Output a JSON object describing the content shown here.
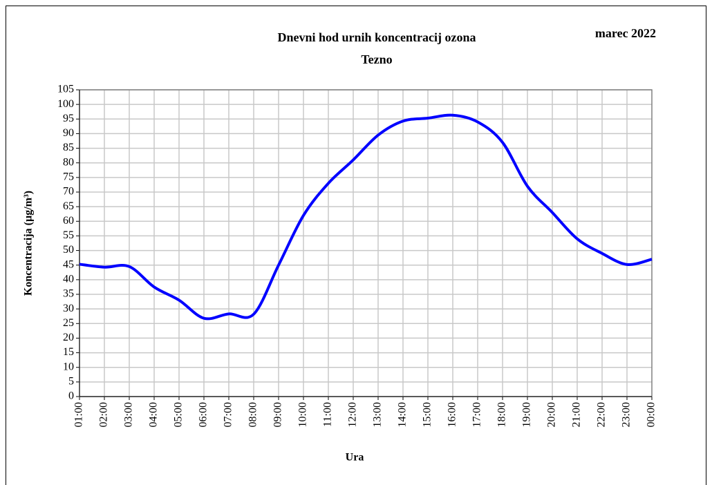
{
  "chart_data": {
    "type": "line",
    "title": "Dnevni hod urnih koncentracij ozona",
    "subtitle": "Tezno",
    "period": "marec 2022",
    "x_label": "Ura",
    "y_label": "Koncentracija (µg/m³)",
    "categories": [
      "01:00",
      "02:00",
      "03:00",
      "04:00",
      "05:00",
      "06:00",
      "07:00",
      "08:00",
      "09:00",
      "10:00",
      "11:00",
      "12:00",
      "13:00",
      "14:00",
      "15:00",
      "16:00",
      "17:00",
      "18:00",
      "19:00",
      "20:00",
      "21:00",
      "22:00",
      "23:00",
      "00:00"
    ],
    "series": [
      {
        "color": "#0000ff",
        "values": [
          45.3,
          44.3,
          44.5,
          37.5,
          33,
          26.8,
          28.3,
          28.2,
          45,
          62,
          73,
          81,
          89.5,
          94.3,
          95.3,
          96.3,
          94,
          87,
          72,
          63,
          54,
          49,
          45.2,
          47
        ]
      }
    ],
    "ylim": [
      0,
      105
    ],
    "yticks": [
      0,
      5,
      10,
      15,
      20,
      25,
      30,
      35,
      40,
      45,
      50,
      55,
      60,
      65,
      70,
      75,
      80,
      85,
      90,
      95,
      100,
      105
    ],
    "grid": true
  }
}
